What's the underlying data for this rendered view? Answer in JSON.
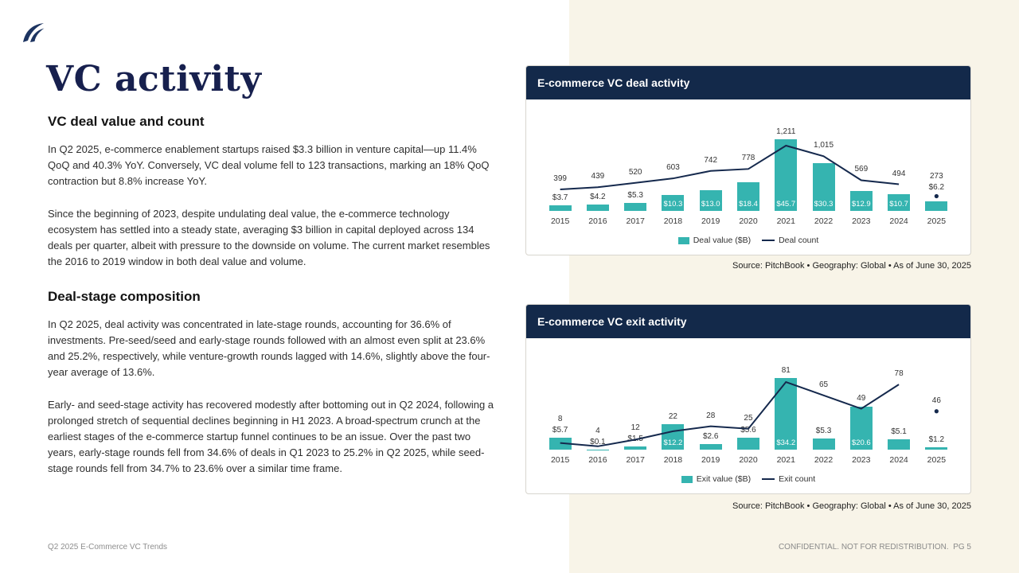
{
  "page": {
    "title": "VC activity",
    "footer_left": "Q2 2025 E-Commerce VC Trends",
    "footer_right": "CONFIDENTIAL. NOT FOR REDISTRIBUTION.  PG 5"
  },
  "colors": {
    "accent_teal": "#35b4b0",
    "navy": "#13294a",
    "cream_panel": "#f8f4e8"
  },
  "sections": [
    {
      "heading": "VC deal value and count",
      "paragraphs": [
        "In Q2 2025, e-commerce enablement startups raised $3.3 billion in venture capital—up 11.4% QoQ and 40.3% YoY. Conversely, VC deal volume fell to 123 transactions, marking an 18% QoQ contraction but 8.8% increase YoY.",
        "Since the beginning of 2023, despite undulating deal value, the e-commerce technology ecosystem has settled into a steady state, averaging $3 billion in capital deployed across 134 deals per quarter, albeit with pressure to the downside on volume. The current market resembles the 2016 to 2019 window in both deal value and volume."
      ]
    },
    {
      "heading": "Deal-stage composition",
      "paragraphs": [
        "In Q2 2025, deal activity was concentrated in late-stage rounds, accounting for 36.6% of investments. Pre-seed/seed and early-stage rounds followed with an almost even split at 23.6% and 25.2%, respectively, while venture-growth rounds lagged with 14.6%, slightly above the four-year average of 13.6%.",
        "Early- and seed-stage activity has recovered modestly after bottoming out in Q2 2024, following a prolonged stretch of sequential declines beginning in H1 2023. A broad-spectrum crunch at the earliest stages of the e-commerce startup funnel continues to be an issue. Over the past two years, early-stage rounds fell from 34.6% of deals in Q1 2023 to 25.2% in Q2 2025, while seed-stage rounds fell from 34.7% to 23.6% over a similar time frame."
      ]
    }
  ],
  "chart_data": [
    {
      "type": "bar",
      "title": "E-commerce VC deal activity",
      "categories": [
        "2015",
        "2016",
        "2017",
        "2018",
        "2019",
        "2020",
        "2021",
        "2022",
        "2023",
        "2024",
        "2025"
      ],
      "series": [
        {
          "name": "Deal value ($B)",
          "type": "bar",
          "values": [
            3.7,
            4.2,
            5.3,
            10.3,
            13.0,
            18.4,
            45.7,
            30.3,
            12.9,
            10.7,
            6.2
          ],
          "labels": [
            "$3.7",
            "$4.2",
            "$5.3",
            "$10.3",
            "$13.0",
            "$18.4",
            "$45.7",
            "$30.3",
            "$12.9",
            "$10.7",
            "$6.2"
          ]
        },
        {
          "name": "Deal count",
          "type": "line",
          "values": [
            399,
            439,
            520,
            603,
            742,
            778,
            1211,
            1015,
            569,
            494,
            273
          ],
          "labels": [
            "399",
            "439",
            "520",
            "603",
            "742",
            "778",
            "1,211",
            "1,015",
            "569",
            "494",
            "273"
          ]
        }
      ],
      "style": {
        "grid": false,
        "legend_position": "bottom",
        "isolated_last_point": true
      },
      "source": "Source: PitchBook • Geography: Global • As of June 30, 2025"
    },
    {
      "type": "bar",
      "title": "E-commerce VC exit activity",
      "categories": [
        "2015",
        "2016",
        "2017",
        "2018",
        "2019",
        "2020",
        "2021",
        "2022",
        "2023",
        "2024",
        "2025"
      ],
      "series": [
        {
          "name": "Exit value ($B)",
          "type": "bar",
          "values": [
            5.7,
            0.1,
            1.5,
            12.2,
            2.6,
            5.6,
            34.2,
            5.3,
            20.6,
            5.1,
            1.2
          ],
          "labels": [
            "$5.7",
            "$0.1",
            "$1.5",
            "$12.2",
            "$2.6",
            "$5.6",
            "$34.2",
            "$5.3",
            "$20.6",
            "$5.1",
            "$1.2"
          ]
        },
        {
          "name": "Exit count",
          "type": "line",
          "values": [
            8,
            4,
            12,
            22,
            28,
            25,
            81,
            65,
            49,
            78,
            46
          ],
          "labels": [
            "8",
            "4",
            "12",
            "22",
            "28",
            "25",
            "81",
            "65",
            "49",
            "78",
            "46"
          ]
        }
      ],
      "style": {
        "grid": false,
        "legend_position": "bottom",
        "isolated_last_point": true
      },
      "source": "Source: PitchBook • Geography: Global • As of June 30, 2025"
    }
  ]
}
